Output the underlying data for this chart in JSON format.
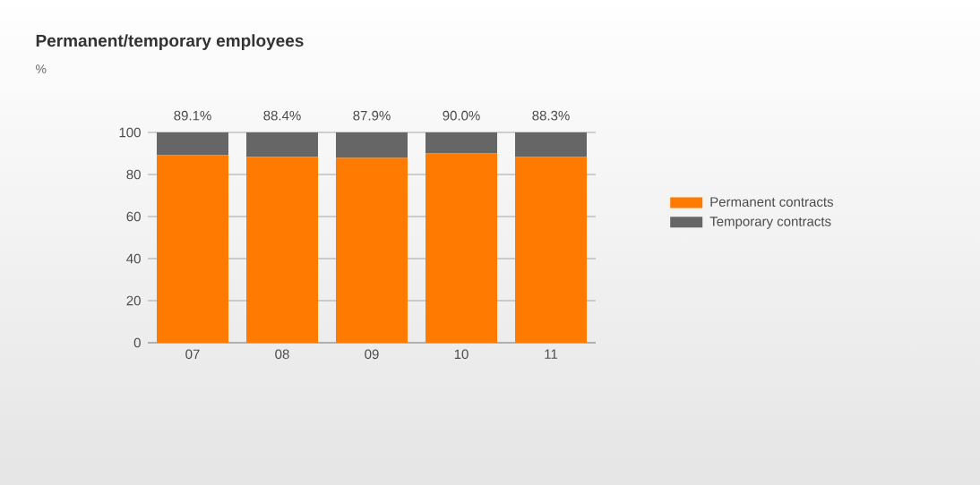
{
  "chart_data": {
    "type": "bar",
    "title": "Permanent/temporary employees",
    "annotations": [
      "%"
    ],
    "stacked": true,
    "categories": [
      "07",
      "08",
      "09",
      "10",
      "11"
    ],
    "series": [
      {
        "name": "Permanent contracts",
        "color": "#ff7a00",
        "values": [
          89.1,
          88.4,
          87.9,
          90.0,
          88.3
        ],
        "value_labels": [
          "89.1%",
          "88.4%",
          "87.9%",
          "90.0%",
          "88.3%"
        ]
      },
      {
        "name": "Temporary contracts",
        "color": "#666666",
        "values": [
          10.9,
          11.6,
          12.1,
          10.0,
          11.7
        ]
      }
    ],
    "ylim": [
      0,
      100
    ],
    "yticks": [
      0,
      20,
      40,
      60,
      80,
      100
    ],
    "grid": "y",
    "legend": "right"
  }
}
